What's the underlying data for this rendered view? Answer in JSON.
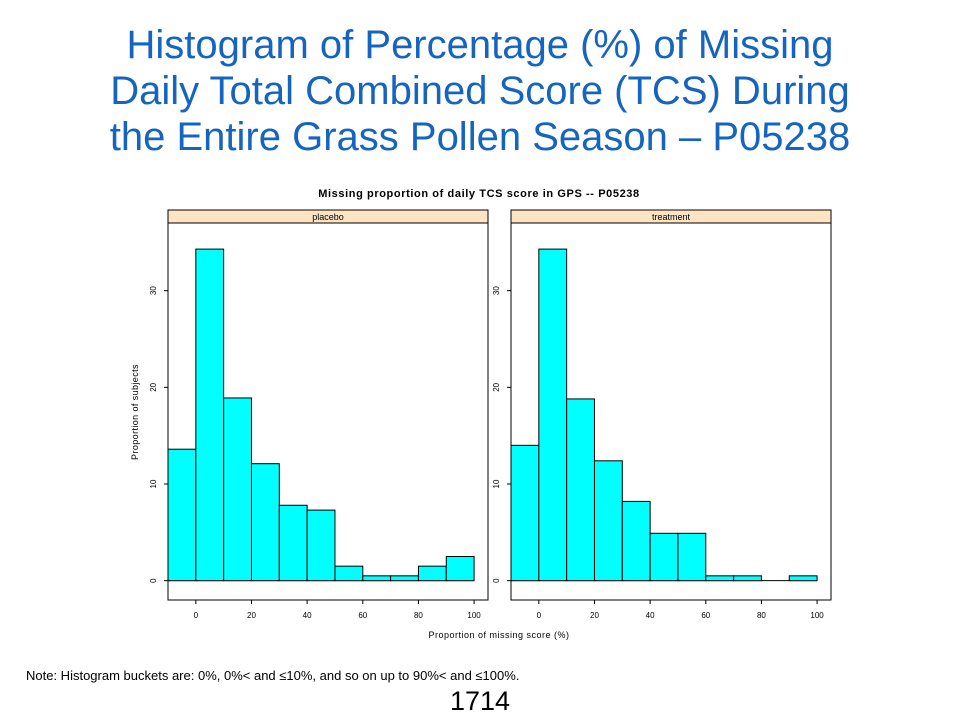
{
  "slide": {
    "title_lines": [
      "Histogram of Percentage (%) of Missing",
      "Daily Total Combined Score (TCS) During",
      "the Entire Grass Pollen Season – P05238"
    ],
    "note": "Note: Histogram buckets are: 0%, 0%< and ≤10%, and so on up to  90%< and ≤100%.",
    "page_number": "1714",
    "colors": {
      "title": "#1565c0",
      "bar_fill": "#00ffff",
      "strip_fill": "#ffe4c4"
    }
  },
  "chart_data": {
    "type": "bar",
    "title": "Missing proportion of daily TCS score in GPS -- P05238",
    "xlabel": "Proportion of missing score (%)",
    "ylabel": "Proportion of subjects",
    "xlim": [
      -10,
      105
    ],
    "ylim": [
      -2,
      37
    ],
    "xticks": [
      0,
      20,
      40,
      60,
      80,
      100
    ],
    "yticks": [
      0,
      10,
      20,
      30
    ],
    "bin_edges": [
      -10,
      0,
      10,
      20,
      30,
      40,
      50,
      60,
      70,
      80,
      90,
      100
    ],
    "series": [
      {
        "name": "placebo",
        "values": [
          13.6,
          34.3,
          18.9,
          12.1,
          7.8,
          7.3,
          1.5,
          0.5,
          0.5,
          1.5,
          2.5
        ]
      },
      {
        "name": "treatment",
        "values": [
          14.0,
          34.3,
          18.8,
          12.4,
          8.2,
          4.9,
          4.9,
          0.5,
          0.5,
          0,
          0.5
        ]
      }
    ]
  }
}
